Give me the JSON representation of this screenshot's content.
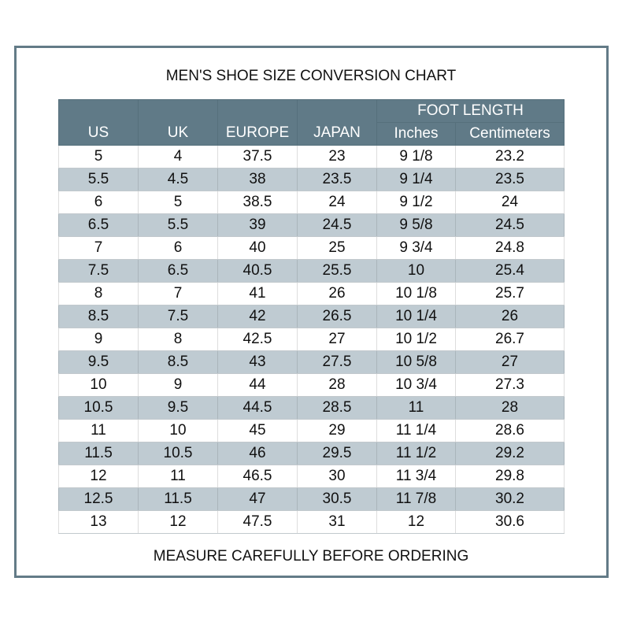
{
  "title": "MEN'S SHOE SIZE CONVERSION CHART",
  "footer": "MEASURE CAREFULLY BEFORE ORDERING",
  "colors": {
    "header": "#607a87",
    "stripe": "#bfcbd2",
    "frame": "#637b87"
  },
  "headers": {
    "group": "FOOT LENGTH",
    "columns": [
      "US",
      "UK",
      "EUROPE",
      "JAPAN",
      "Inches",
      "Centimeters"
    ]
  },
  "rows": [
    [
      "5",
      "4",
      "37.5",
      "23",
      "9 1/8",
      "23.2"
    ],
    [
      "5.5",
      "4.5",
      "38",
      "23.5",
      "9 1/4",
      "23.5"
    ],
    [
      "6",
      "5",
      "38.5",
      "24",
      "9 1/2",
      "24"
    ],
    [
      "6.5",
      "5.5",
      "39",
      "24.5",
      "9 5/8",
      "24.5"
    ],
    [
      "7",
      "6",
      "40",
      "25",
      "9 3/4",
      "24.8"
    ],
    [
      "7.5",
      "6.5",
      "40.5",
      "25.5",
      "10",
      "25.4"
    ],
    [
      "8",
      "7",
      "41",
      "26",
      "10 1/8",
      "25.7"
    ],
    [
      "8.5",
      "7.5",
      "42",
      "26.5",
      "10 1/4",
      "26"
    ],
    [
      "9",
      "8",
      "42.5",
      "27",
      "10 1/2",
      "26.7"
    ],
    [
      "9.5",
      "8.5",
      "43",
      "27.5",
      "10 5/8",
      "27"
    ],
    [
      "10",
      "9",
      "44",
      "28",
      "10 3/4",
      "27.3"
    ],
    [
      "10.5",
      "9.5",
      "44.5",
      "28.5",
      "11",
      "28"
    ],
    [
      "11",
      "10",
      "45",
      "29",
      "11 1/4",
      "28.6"
    ],
    [
      "11.5",
      "10.5",
      "46",
      "29.5",
      "11 1/2",
      "29.2"
    ],
    [
      "12",
      "11",
      "46.5",
      "30",
      "11 3/4",
      "29.8"
    ],
    [
      "12.5",
      "11.5",
      "47",
      "30.5",
      "11 7/8",
      "30.2"
    ],
    [
      "13",
      "12",
      "47.5",
      "31",
      "12",
      "30.6"
    ]
  ]
}
